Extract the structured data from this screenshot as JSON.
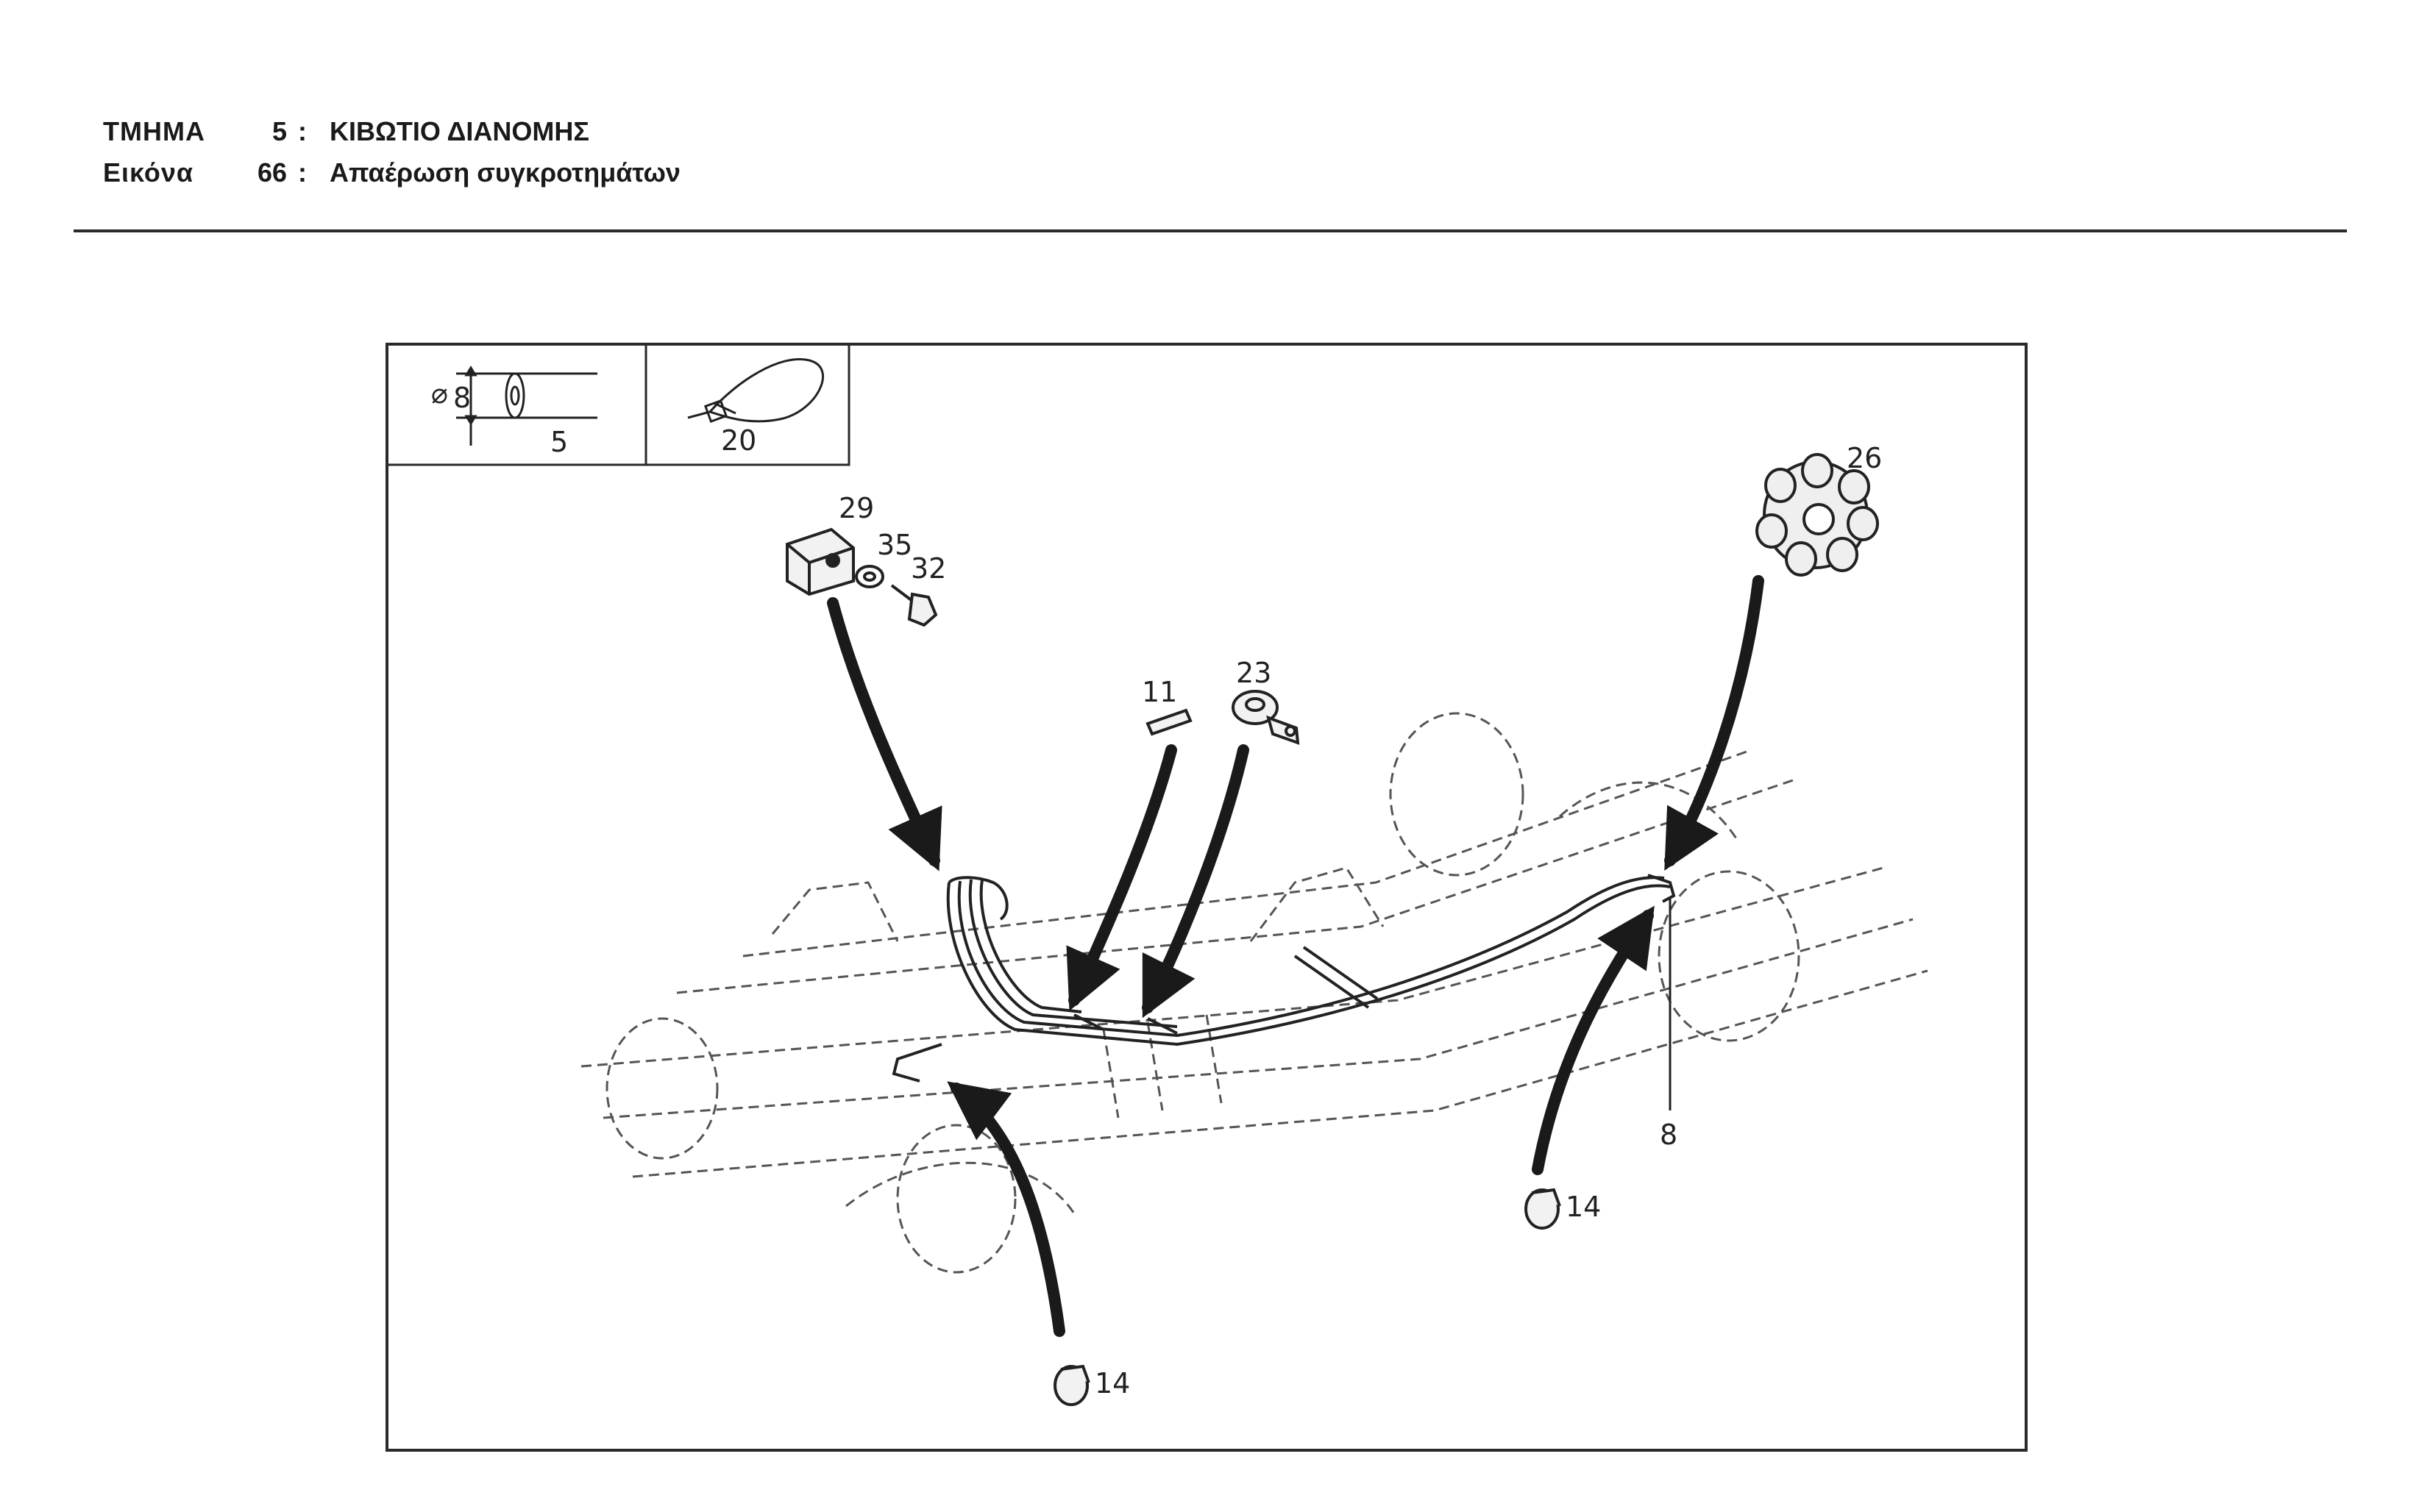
{
  "header": {
    "section_label": "ΤΜΗΜΑ",
    "section_number": "5",
    "section_title": "ΚΙΒΩΤΙΟ ΔΙΑΝΟΜΗΣ",
    "figure_label": "Εικόνα",
    "figure_number": "66",
    "figure_title": "Απαέρωση συγκροτημάτων",
    "separator": ":"
  },
  "inset": {
    "diameter_symbol": "⌀",
    "diameter_value": "8",
    "hose_part": "5",
    "tie_part": "20"
  },
  "callouts": {
    "clip_block": "29",
    "washer": "35",
    "bolt": "32",
    "pin": "11",
    "banjo": "23",
    "grommet": "26",
    "hose_end": "8",
    "clamp_right": "14",
    "clamp_bottom": "14"
  }
}
